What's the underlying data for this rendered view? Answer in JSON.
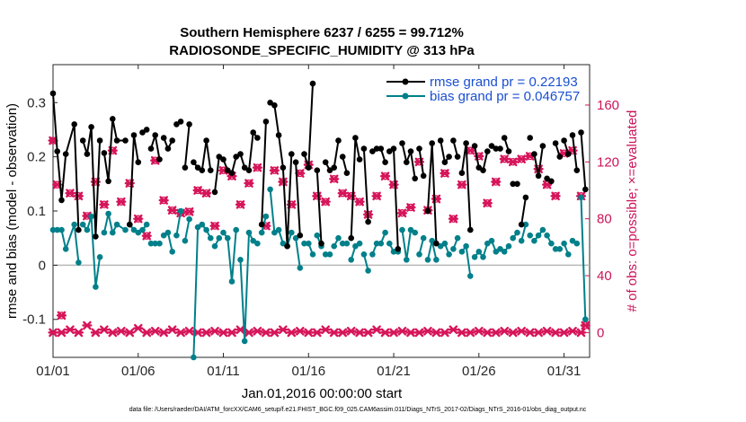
{
  "chart_data": {
    "type": "line",
    "title": "Southern Hemisphere 6237 / 6255 = 99.712%",
    "subtitle": "RADIOSONDE_SPECIFIC_HUMIDITY @ 313 hPa",
    "ylabel": "rmse and bias (model - observation)",
    "ylabel_right": "# of obs: o=possible; ×=evaluated",
    "xlabel": "Jan.01,2016 00:00:00 start",
    "footer": "data file: /Users/raeder/DAI/ATM_forcXX/CAM6_setup/f.e21.FHIST_BGC.f09_025.CAM6assim.011/Diags_NTrS_2017-02/Diags_NTrS_2016-01/obs_diag_output.nc",
    "xlim": [
      0,
      31.5
    ],
    "ylim": [
      -0.17,
      0.37
    ],
    "ylim_right": [
      -17.45,
      188.4
    ],
    "x_tick_labels": [
      "01/01",
      "01/06",
      "01/11",
      "01/16",
      "01/21",
      "01/26",
      "01/31"
    ],
    "x_tick_values": [
      0,
      5,
      10,
      15,
      20,
      25,
      30
    ],
    "y_tick_labels": [
      "-0.1",
      "0",
      "0.1",
      "0.2",
      "0.3"
    ],
    "y_tick_values": [
      -0.1,
      0,
      0.1,
      0.2,
      0.3
    ],
    "y_right_tick_labels": [
      "0",
      "40",
      "80",
      "120",
      "160"
    ],
    "y_right_tick_values": [
      0,
      40,
      80,
      120,
      160
    ],
    "zero_line": 0,
    "legend": [
      {
        "name": "rmse grand pr = 0.22193",
        "color": "#000000"
      },
      {
        "name": "bias grand pr = 0.046757",
        "color": "#00808a"
      }
    ],
    "series": [
      {
        "name": "rmse",
        "color": "#000000",
        "x": [
          0,
          0.25,
          0.5,
          0.75,
          1.25,
          1.5,
          1.75,
          2.0,
          2.25,
          2.5,
          2.75,
          3.0,
          3.25,
          3.5,
          3.75,
          4.25,
          4.5,
          4.75,
          5.0,
          5.25,
          5.5,
          5.75,
          6.0,
          6.25,
          6.5,
          6.75,
          7.0,
          7.25,
          7.5,
          7.75,
          8.0,
          8.25,
          8.5,
          8.75,
          9.0,
          9.25,
          9.5,
          9.75,
          10.0,
          10.25,
          10.5,
          10.75,
          11.0,
          11.25,
          11.5,
          11.75,
          12.0,
          12.25,
          12.5,
          12.75,
          13.0,
          13.25,
          13.5,
          13.75,
          14.0,
          14.25,
          14.5,
          14.75,
          15.0,
          15.25,
          15.5,
          15.75,
          16.0,
          16.25,
          16.5,
          16.75,
          17.0,
          17.25,
          17.5,
          17.75,
          18.0,
          18.25,
          18.5,
          18.75,
          19.0,
          19.25,
          19.5,
          19.75,
          20.0,
          20.25,
          20.5,
          20.75,
          21.0,
          21.25,
          21.5,
          21.75,
          22.0,
          22.25,
          22.5,
          22.75,
          23.0,
          23.25,
          23.5,
          23.75,
          24.0,
          24.25,
          24.5,
          24.75,
          25.0,
          25.25,
          25.5,
          25.75,
          26.0,
          26.25,
          26.5,
          26.75,
          27.0,
          27.25,
          27.5,
          27.75,
          28.0,
          28.25,
          28.5,
          28.75,
          29.0,
          29.25,
          29.5,
          29.75,
          30.0,
          30.25,
          30.5,
          30.75,
          31.0,
          31.25
        ],
        "y": [
          0.317,
          0.21,
          0.12,
          0.205,
          0.26,
          0.065,
          0.23,
          0.205,
          0.255,
          0.053,
          0.23,
          0.207,
          0.155,
          0.27,
          0.23,
          0.23,
          0.075,
          0.24,
          0.19,
          0.245,
          0.25,
          0.215,
          0.24,
          0.195,
          0.235,
          0.215,
          0.23,
          0.26,
          0.265,
          0.18,
          0.26,
          0.19,
          0.18,
          0.175,
          0.23,
          0.175,
          0.135,
          0.2,
          0.195,
          0.175,
          0.17,
          0.2,
          0.205,
          0.18,
          0.175,
          0.245,
          0.235,
          0.075,
          0.265,
          0.3,
          0.295,
          0.24,
          0.18,
          0.035,
          0.205,
          0.19,
          0.055,
          0.205,
          0.18,
          0.335,
          0.175,
          0.04,
          0.19,
          0.175,
          0.18,
          0.23,
          0.2,
          0.17,
          0.05,
          0.235,
          0.195,
          0.215,
          0.08,
          0.21,
          0.215,
          0.215,
          0.19,
          0.21,
          0.215,
          0.03,
          0.225,
          0.19,
          0.21,
          0.16,
          0.215,
          0.165,
          0.1,
          0.225,
          0.04,
          0.23,
          0.19,
          0.2,
          0.23,
          0.2,
          0.17,
          0.225,
          0.065,
          0.22,
          0.18,
          0.175,
          0.21,
          0.22,
          0.215,
          0.215,
          0.235,
          0.21,
          0.15,
          0.15,
          0.075,
          0.125,
          0.235,
          0.205,
          0.165,
          0.22,
          0.16,
          0.155,
          0.225,
          0.2,
          0.23,
          0.205,
          0.24,
          0.175,
          0.245,
          0.14
        ],
        "breaks_before": [
          6,
          11,
          16,
          19,
          21,
          24,
          27,
          29,
          31,
          36,
          38,
          42,
          47,
          49,
          55,
          57,
          60,
          62,
          64,
          66,
          68,
          71,
          73,
          75,
          77,
          80,
          84,
          86,
          89,
          92,
          94,
          97,
          101,
          104,
          106,
          108,
          110,
          111,
          114,
          116,
          118,
          120,
          122
        ]
      },
      {
        "name": "bias",
        "color": "#00808a",
        "x": [
          0,
          0.25,
          0.5,
          0.75,
          1.25,
          1.5,
          1.75,
          2.0,
          2.25,
          2.5,
          2.75,
          3.0,
          3.25,
          3.5,
          3.75,
          4.25,
          4.5,
          4.75,
          5.0,
          5.25,
          5.5,
          5.75,
          6.0,
          6.25,
          6.5,
          6.75,
          7.0,
          7.25,
          7.5,
          7.75,
          8.0,
          8.25,
          8.5,
          8.75,
          9.0,
          9.25,
          9.5,
          9.75,
          10.0,
          10.25,
          10.5,
          10.75,
          11.0,
          11.25,
          11.5,
          11.75,
          12.0,
          12.25,
          12.5,
          12.75,
          13.0,
          13.25,
          13.5,
          13.75,
          14.0,
          14.25,
          14.5,
          14.75,
          15.0,
          15.25,
          15.5,
          15.75,
          16.0,
          16.25,
          16.5,
          16.75,
          17.0,
          17.25,
          17.5,
          17.75,
          18.0,
          18.25,
          18.5,
          18.75,
          19.0,
          19.25,
          19.5,
          19.75,
          20.0,
          20.25,
          20.5,
          20.75,
          21.0,
          21.25,
          21.5,
          21.75,
          22.0,
          22.25,
          22.5,
          22.75,
          23.0,
          23.25,
          23.5,
          23.75,
          24.0,
          24.25,
          24.5,
          24.75,
          25.0,
          25.25,
          25.5,
          25.75,
          26.0,
          26.25,
          26.5,
          26.75,
          27.0,
          27.25,
          27.5,
          27.75,
          28.0,
          28.25,
          28.5,
          28.75,
          29.0,
          29.25,
          29.5,
          29.75,
          30.0,
          30.25,
          30.5,
          30.75,
          31.0,
          31.25
        ],
        "y": [
          0.065,
          0.065,
          0.065,
          0.03,
          0.075,
          0.005,
          0.075,
          0.065,
          0.09,
          -0.04,
          0.015,
          0.06,
          0.095,
          0.06,
          0.075,
          0.065,
          0.075,
          0.065,
          0.06,
          0.065,
          0.075,
          0.04,
          0.04,
          0.04,
          0.055,
          0.06,
          0.025,
          0.055,
          0.1,
          0.045,
          0.085,
          -0.17,
          0.07,
          0.075,
          0.065,
          0.05,
          0.035,
          0.05,
          0.06,
          0.05,
          -0.03,
          0.065,
          0.01,
          -0.14,
          0.06,
          0.045,
          0.04,
          0.06,
          0.09,
          0.14,
          0.06,
          0.065,
          0.04,
          0.035,
          0.06,
          0.05,
          -0.005,
          0.04,
          0.04,
          0.02,
          0.055,
          0.035,
          0.02,
          0.02,
          0.035,
          0.05,
          0.04,
          0.04,
          0.01,
          0.035,
          0.04,
          0.02,
          -0.01,
          0.02,
          0.04,
          0.04,
          0.06,
          0.04,
          0.025,
          0.025,
          0.065,
          0.01,
          0.065,
          0.06,
          0.02,
          0.05,
          0.01,
          0.045,
          0.01,
          0.035,
          0.04,
          0.02,
          0.03,
          0.05,
          0.025,
          0.035,
          -0.02,
          0.015,
          0.025,
          0.015,
          0.04,
          0.045,
          0.025,
          0.03,
          0.025,
          0.035,
          0.05,
          0.06,
          0.045,
          0.075,
          0.055,
          0.045,
          0.055,
          0.065,
          0.055,
          0.04,
          0.03,
          0.03,
          0.04,
          0.02,
          0.045,
          0.04,
          0.125,
          -0.1
        ],
        "breaks_before": [
          6,
          11,
          16,
          19,
          21,
          24,
          27,
          29,
          31,
          36,
          38,
          42,
          47,
          49,
          55,
          57,
          60,
          62,
          64,
          66,
          68,
          71,
          73,
          75,
          77,
          80,
          84,
          86,
          89,
          92,
          94,
          97,
          101,
          104,
          106,
          108,
          110,
          111,
          114,
          116,
          118,
          120,
          122
        ]
      },
      {
        "name": "# obs possible",
        "color": "#d6155a",
        "marker": "o",
        "axis": "right",
        "x": [
          0,
          0.25,
          0.5,
          1.0,
          1.5,
          2.0,
          2.5,
          3.0,
          3.5,
          4.0,
          4.5,
          5.0,
          5.5,
          6.0,
          6.5,
          7.0,
          7.5,
          8.0,
          8.5,
          9.0,
          9.5,
          10.0,
          10.5,
          11.0,
          11.5,
          12.0,
          12.5,
          13.0,
          13.5,
          14.0,
          14.5,
          15.0,
          15.5,
          16.0,
          16.5,
          17.0,
          17.5,
          18.0,
          18.5,
          19.0,
          19.5,
          20.0,
          20.5,
          21.0,
          21.5,
          22.0,
          22.5,
          23.0,
          23.5,
          24.0,
          24.5,
          25.0,
          25.5,
          26.0,
          26.5,
          27.0,
          27.5,
          28.0,
          28.5,
          29.0,
          29.5,
          30.0,
          30.5,
          31.0,
          31.25
        ],
        "y": [
          135,
          104,
          12,
          98,
          96,
          82,
          106,
          90,
          128,
          92,
          105,
          80,
          68,
          121,
          93,
          86,
          84,
          85,
          100,
          98,
          75,
          114,
          110,
          90,
          105,
          116,
          75,
          114,
          106,
          90,
          112,
          118,
          96,
          92,
          108,
          98,
          96,
          92,
          83,
          96,
          110,
          104,
          84,
          88,
          120,
          86,
          94,
          112,
          80,
          104,
          128,
          124,
          91,
          106,
          122,
          120,
          122,
          124,
          115,
          104,
          96,
          126,
          128,
          96,
          5
        ]
      },
      {
        "name": "# obs evaluated",
        "color": "#d6155a",
        "marker": "x",
        "axis": "right",
        "x": [
          0,
          0.25,
          0.5,
          1.0,
          1.5,
          2.0,
          2.5,
          3.0,
          3.5,
          4.0,
          4.5,
          5.0,
          5.5,
          6.0,
          6.5,
          7.0,
          7.5,
          8.0,
          8.5,
          9.0,
          9.5,
          10.0,
          10.5,
          11.0,
          11.5,
          12.0,
          12.5,
          13.0,
          13.5,
          14.0,
          14.5,
          15.0,
          15.5,
          16.0,
          16.5,
          17.0,
          17.5,
          18.0,
          18.5,
          19.0,
          19.5,
          20.0,
          20.5,
          21.0,
          21.5,
          22.0,
          22.5,
          23.0,
          23.5,
          24.0,
          24.5,
          25.0,
          25.5,
          26.0,
          26.5,
          27.0,
          27.5,
          28.0,
          28.5,
          29.0,
          29.5,
          30.0,
          30.5,
          31.0,
          31.25
        ],
        "y": [
          135,
          104,
          12,
          98,
          96,
          82,
          106,
          90,
          128,
          92,
          105,
          80,
          68,
          121,
          93,
          86,
          84,
          85,
          100,
          98,
          75,
          114,
          110,
          90,
          105,
          116,
          75,
          114,
          106,
          90,
          112,
          118,
          96,
          92,
          108,
          98,
          96,
          92,
          83,
          96,
          110,
          104,
          84,
          88,
          120,
          86,
          94,
          112,
          80,
          104,
          128,
          124,
          91,
          106,
          122,
          120,
          122,
          124,
          115,
          104,
          96,
          126,
          128,
          96,
          5
        ]
      },
      {
        "name": "# obs baseline",
        "color": "#d6155a",
        "marker": "x",
        "axis": "right",
        "x": [
          0,
          0.5,
          1.0,
          1.5,
          2.0,
          2.5,
          3.0,
          3.5,
          4.0,
          4.5,
          5.0,
          5.5,
          6.0,
          6.5,
          7.0,
          7.5,
          8.0,
          8.5,
          9.0,
          9.5,
          10.0,
          10.5,
          11.0,
          11.5,
          12.0,
          12.5,
          13.0,
          13.5,
          14.0,
          14.5,
          15.0,
          15.5,
          16.0,
          16.5,
          17.0,
          17.5,
          18.0,
          18.5,
          19.0,
          19.5,
          20.0,
          20.5,
          21.0,
          21.5,
          22.0,
          22.5,
          23.0,
          23.5,
          24.0,
          24.5,
          25.0,
          25.5,
          26.0,
          26.5,
          27.0,
          27.5,
          28.0,
          28.5,
          29.0,
          29.5,
          30.0,
          30.5,
          31.0
        ],
        "y": [
          0,
          0,
          2,
          0,
          5,
          0,
          2,
          0,
          1,
          0,
          3,
          0,
          1,
          0,
          2,
          0,
          1,
          0,
          0,
          1,
          0,
          0,
          2,
          0,
          1,
          0,
          0,
          2,
          0,
          1,
          0,
          0,
          2,
          0,
          0,
          1,
          0,
          0,
          2,
          0,
          0,
          1,
          0,
          0,
          1,
          0,
          0,
          2,
          0,
          0,
          1,
          0,
          0,
          1,
          0,
          1,
          0,
          0,
          1,
          0,
          0,
          1,
          0
        ]
      }
    ]
  }
}
